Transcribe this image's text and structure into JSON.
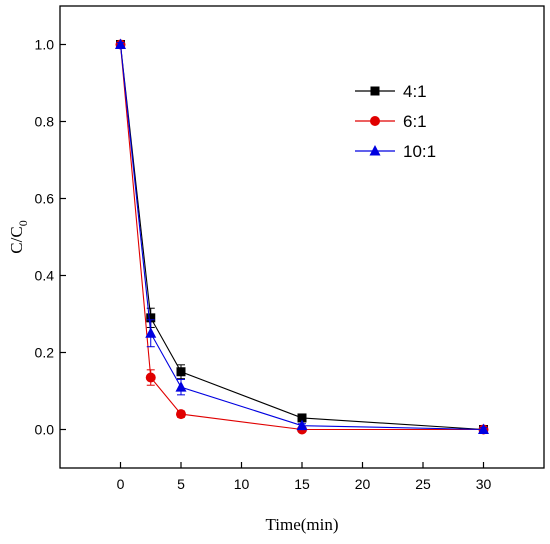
{
  "chart_data": {
    "type": "line",
    "xlabel": "Time(min)",
    "ylabel": {
      "main": "C/C",
      "sub": "0"
    },
    "xlim": [
      -5,
      35
    ],
    "ylim": [
      -0.1,
      1.1
    ],
    "x_ticks": [
      0,
      5,
      10,
      15,
      20,
      25,
      30
    ],
    "y_ticks": [
      0.0,
      0.2,
      0.4,
      0.6,
      0.8,
      1.0
    ],
    "x_tick_labels": [
      "0",
      "5",
      "10",
      "15",
      "20",
      "25",
      "30"
    ],
    "y_tick_labels": [
      "0.0",
      "0.2",
      "0.4",
      "0.6",
      "0.8",
      "1.0"
    ],
    "x": [
      0,
      2.5,
      5,
      15,
      30
    ],
    "series": [
      {
        "name": "4:1",
        "values": [
          1.0,
          0.29,
          0.15,
          0.03,
          0.0
        ],
        "errors": [
          0.005,
          0.025,
          0.018,
          0.006,
          0.005
        ],
        "color": "#000000",
        "marker": "square"
      },
      {
        "name": "6:1",
        "values": [
          1.0,
          0.135,
          0.04,
          0.0,
          0.0
        ],
        "errors": [
          0.005,
          0.02,
          0.008,
          0.004,
          0.004
        ],
        "color": "#e00000",
        "marker": "circle"
      },
      {
        "name": "10:1",
        "values": [
          1.0,
          0.25,
          0.11,
          0.01,
          0.0
        ],
        "errors": [
          0.005,
          0.035,
          0.02,
          0.005,
          0.005
        ],
        "color": "#0000e0",
        "marker": "triangle"
      }
    ],
    "grid": false,
    "legend_position": "top-right"
  }
}
